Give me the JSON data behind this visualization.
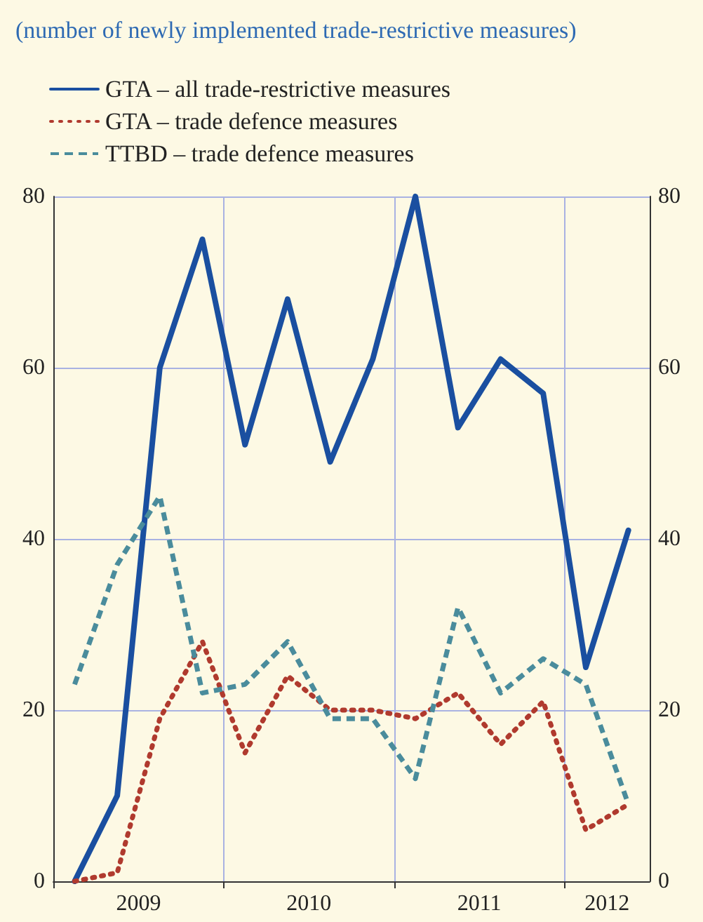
{
  "chart_data": {
    "type": "line",
    "subtitle": "(number of newly implemented trade-restrictive measures)",
    "x": [
      2009.125,
      2009.375,
      2009.625,
      2009.875,
      2010.125,
      2010.375,
      2010.625,
      2010.875,
      2011.125,
      2011.375,
      2011.625,
      2011.875,
      2012.125,
      2012.375
    ],
    "series": [
      {
        "name": "GTA – all trade-restrictive measures",
        "color": "#1a4fa0",
        "line_style": "solid",
        "values": [
          0,
          10,
          60,
          75,
          51,
          68,
          49,
          61,
          80,
          53,
          61,
          57,
          25,
          41
        ]
      },
      {
        "name": "GTA – trade defence measures",
        "color": "#b03a2e",
        "line_style": "dotted",
        "values": [
          0,
          1,
          19,
          28,
          15,
          24,
          20,
          20,
          19,
          22,
          16,
          21,
          6,
          9
        ]
      },
      {
        "name": "TTBD – trade defence measures",
        "color": "#4a8c9c",
        "line_style": "dashed",
        "values": [
          23,
          37,
          45,
          22,
          23,
          28,
          19,
          19,
          12,
          32,
          22,
          26,
          23,
          9
        ]
      }
    ],
    "xlim": [
      2009,
      2012.5
    ],
    "xticks": [
      {
        "value": 2009,
        "label": null
      },
      {
        "value": 2009.5,
        "label": "2009"
      },
      {
        "value": 2010,
        "label": null
      },
      {
        "value": 2010.5,
        "label": "2010"
      },
      {
        "value": 2011,
        "label": null
      },
      {
        "value": 2011.5,
        "label": "2011"
      },
      {
        "value": 2012,
        "label": null
      },
      {
        "value": 2012.25,
        "label": "2012"
      }
    ],
    "ylim": [
      0,
      80
    ],
    "yticks": [
      0,
      20,
      40,
      60,
      80
    ],
    "y2lim": [
      0,
      80
    ],
    "y2ticks": [
      0,
      20,
      40,
      60,
      80
    ],
    "grid": true,
    "legend": "top left",
    "marker": "none"
  }
}
